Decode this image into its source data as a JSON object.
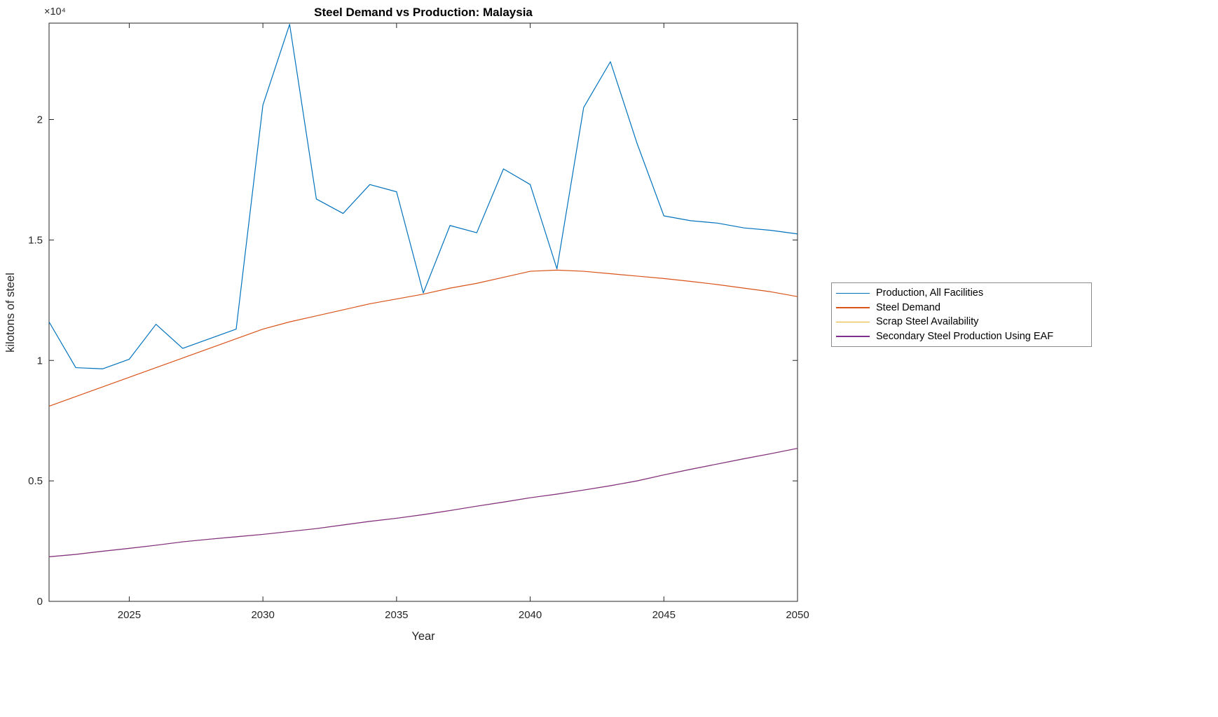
{
  "figure": {
    "title": "Steel Demand vs Production: Malaysia",
    "xlabel": "Year",
    "ylabel": "kilotons of steel",
    "y_multiplier": "×10⁴",
    "axis_color": "#262626",
    "background": "#ffffff"
  },
  "chart_data": {
    "type": "line",
    "title": "Steel Demand vs Production: Malaysia",
    "xlabel": "Year",
    "ylabel": "kilotons of steel",
    "xlim": [
      2022,
      2050
    ],
    "ylim": [
      0,
      24000
    ],
    "x_ticks": [
      2025,
      2030,
      2035,
      2040,
      2045,
      2050
    ],
    "y_ticks": [
      {
        "value": 0,
        "label": "0"
      },
      {
        "value": 5000,
        "label": "0.5"
      },
      {
        "value": 10000,
        "label": "1"
      },
      {
        "value": 15000,
        "label": "1.5"
      },
      {
        "value": 20000,
        "label": "2"
      }
    ],
    "grid": false,
    "legend_position": "right-outside",
    "x": [
      2022,
      2023,
      2024,
      2025,
      2026,
      2027,
      2028,
      2029,
      2030,
      2031,
      2032,
      2033,
      2034,
      2035,
      2036,
      2037,
      2038,
      2039,
      2040,
      2041,
      2042,
      2043,
      2044,
      2045,
      2046,
      2047,
      2048,
      2049,
      2050
    ],
    "series": [
      {
        "name": "Production, All Facilities",
        "color": "#0072BD",
        "values": [
          11600,
          9700,
          9650,
          10050,
          11500,
          10500,
          10900,
          11300,
          20600,
          23950,
          16700,
          16100,
          17300,
          17000,
          12800,
          15600,
          15300,
          17950,
          17300,
          13800,
          20500,
          22400,
          19000,
          16000,
          15800,
          15700,
          15500,
          15400,
          15250
        ]
      },
      {
        "name": "Steel Demand",
        "color": "#D95319",
        "values": [
          8100,
          8500,
          8900,
          9300,
          9700,
          10100,
          10500,
          10900,
          11300,
          11600,
          11850,
          12100,
          12350,
          12550,
          12750,
          13000,
          13200,
          13450,
          13700,
          13750,
          13700,
          13600,
          13500,
          13400,
          13280,
          13150,
          13000,
          12850,
          12650
        ]
      },
      {
        "name": "Scrap Steel Availability",
        "color": "#EDB120",
        "values": [
          1850,
          1950,
          2080,
          2200,
          2330,
          2470,
          2580,
          2680,
          2780,
          2900,
          3020,
          3170,
          3320,
          3450,
          3600,
          3770,
          3950,
          4120,
          4300,
          4450,
          4620,
          4800,
          5000,
          5250,
          5480,
          5700,
          5920,
          6130,
          6350
        ]
      },
      {
        "name": "Secondary Steel Production Using EAF",
        "color": "#7E2F8E",
        "values": [
          1850,
          1950,
          2080,
          2200,
          2330,
          2470,
          2580,
          2680,
          2780,
          2900,
          3020,
          3170,
          3320,
          3450,
          3600,
          3770,
          3950,
          4120,
          4300,
          4450,
          4620,
          4800,
          5000,
          5250,
          5480,
          5700,
          5920,
          6130,
          6350
        ]
      }
    ]
  }
}
